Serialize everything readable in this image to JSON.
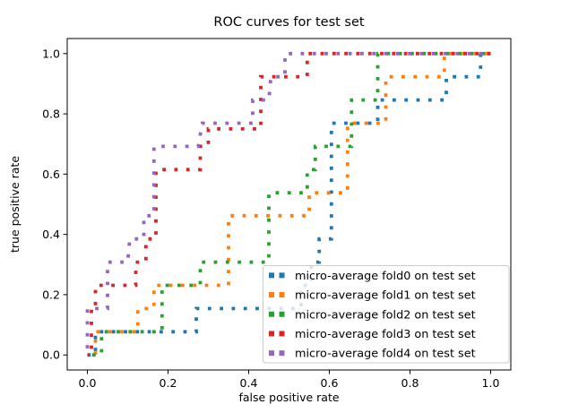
{
  "figure": {
    "title": "ROC curves for test set",
    "xlabel": "false positive rate",
    "ylabel": "true positive rate"
  },
  "chart_data": {
    "type": "line",
    "subtype": "roc-step-curves-dotted",
    "title": "ROC curves for test set",
    "xlabel": "false positive rate",
    "ylabel": "true positive rate",
    "xlim": [
      -0.05,
      1.05
    ],
    "ylim": [
      -0.05,
      1.05
    ],
    "xticks": [
      0.0,
      0.2,
      0.4,
      0.6,
      0.8,
      1.0
    ],
    "yticks": [
      0.0,
      0.2,
      0.4,
      0.6,
      0.8,
      1.0
    ],
    "xtick_labels": [
      "0.0",
      "0.2",
      "0.4",
      "0.6",
      "0.8",
      "1.0"
    ],
    "ytick_labels": [
      "0.0",
      "0.2",
      "0.4",
      "0.6",
      "0.8",
      "1.0"
    ],
    "grid": false,
    "line_style": "dotted",
    "legend": {
      "position": "lower right",
      "frame": true,
      "framealpha": 0.8,
      "border_color": "#cccccc"
    },
    "series": [
      {
        "name": "micro-average fold0 on test set",
        "color": "#1f77b4",
        "points": [
          [
            0,
            0
          ],
          [
            0.02,
            0
          ],
          [
            0.02,
            0.077
          ],
          [
            0.27,
            0.077
          ],
          [
            0.27,
            0.154
          ],
          [
            0.53,
            0.154
          ],
          [
            0.53,
            0.231
          ],
          [
            0.555,
            0.231
          ],
          [
            0.555,
            0.308
          ],
          [
            0.575,
            0.308
          ],
          [
            0.575,
            0.385
          ],
          [
            0.605,
            0.385
          ],
          [
            0.605,
            0.769
          ],
          [
            0.72,
            0.769
          ],
          [
            0.72,
            0.846
          ],
          [
            0.89,
            0.846
          ],
          [
            0.89,
            0.923
          ],
          [
            0.975,
            0.923
          ],
          [
            0.975,
            1.0
          ],
          [
            1,
            1
          ]
        ]
      },
      {
        "name": "micro-average fold1 on test set",
        "color": "#ff7f0e",
        "points": [
          [
            0,
            0
          ],
          [
            0.02,
            0
          ],
          [
            0.02,
            0.077
          ],
          [
            0.125,
            0.077
          ],
          [
            0.125,
            0.154
          ],
          [
            0.165,
            0.154
          ],
          [
            0.165,
            0.231
          ],
          [
            0.35,
            0.231
          ],
          [
            0.35,
            0.462
          ],
          [
            0.55,
            0.462
          ],
          [
            0.55,
            0.538
          ],
          [
            0.645,
            0.538
          ],
          [
            0.645,
            0.769
          ],
          [
            0.74,
            0.769
          ],
          [
            0.74,
            0.923
          ],
          [
            0.885,
            0.923
          ],
          [
            0.885,
            1.0
          ],
          [
            1,
            1
          ]
        ]
      },
      {
        "name": "micro-average fold2 on test set",
        "color": "#2ca02c",
        "points": [
          [
            0,
            0
          ],
          [
            0.035,
            0
          ],
          [
            0.035,
            0.077
          ],
          [
            0.185,
            0.077
          ],
          [
            0.185,
            0.231
          ],
          [
            0.28,
            0.231
          ],
          [
            0.28,
            0.308
          ],
          [
            0.45,
            0.308
          ],
          [
            0.45,
            0.538
          ],
          [
            0.545,
            0.538
          ],
          [
            0.545,
            0.615
          ],
          [
            0.565,
            0.615
          ],
          [
            0.565,
            0.692
          ],
          [
            0.655,
            0.692
          ],
          [
            0.655,
            0.846
          ],
          [
            0.72,
            0.846
          ],
          [
            0.72,
            1.0
          ],
          [
            1,
            1
          ]
        ]
      },
      {
        "name": "micro-average fold3 on test set",
        "color": "#d62728",
        "points": [
          [
            0,
            0
          ],
          [
            0.01,
            0
          ],
          [
            0.01,
            0.154
          ],
          [
            0.02,
            0.154
          ],
          [
            0.02,
            0.231
          ],
          [
            0.12,
            0.231
          ],
          [
            0.12,
            0.308
          ],
          [
            0.145,
            0.308
          ],
          [
            0.145,
            0.385
          ],
          [
            0.17,
            0.385
          ],
          [
            0.17,
            0.615
          ],
          [
            0.28,
            0.615
          ],
          [
            0.28,
            0.692
          ],
          [
            0.3,
            0.692
          ],
          [
            0.3,
            0.75
          ],
          [
            0.43,
            0.75
          ],
          [
            0.43,
            0.923
          ],
          [
            0.545,
            0.923
          ],
          [
            0.545,
            1.0
          ],
          [
            1,
            1
          ]
        ]
      },
      {
        "name": "micro-average fold4 on test set",
        "color": "#9467bd",
        "points": [
          [
            0,
            0
          ],
          [
            0,
            0.154
          ],
          [
            0.05,
            0.154
          ],
          [
            0.05,
            0.308
          ],
          [
            0.1,
            0.308
          ],
          [
            0.105,
            0.385
          ],
          [
            0.14,
            0.385
          ],
          [
            0.14,
            0.462
          ],
          [
            0.165,
            0.462
          ],
          [
            0.165,
            0.692
          ],
          [
            0.275,
            0.692
          ],
          [
            0.285,
            0.769
          ],
          [
            0.41,
            0.769
          ],
          [
            0.41,
            0.846
          ],
          [
            0.45,
            0.846
          ],
          [
            0.455,
            0.923
          ],
          [
            0.49,
            0.923
          ],
          [
            0.49,
            1.0
          ],
          [
            1,
            1
          ]
        ]
      }
    ]
  }
}
